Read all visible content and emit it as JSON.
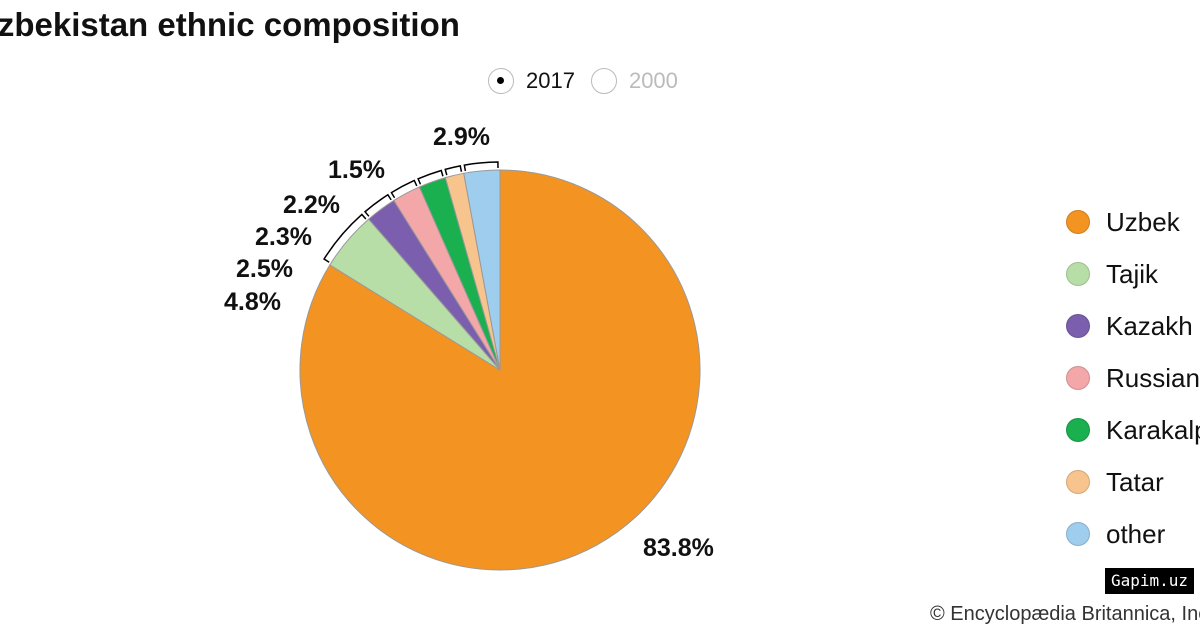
{
  "chart_data": {
    "type": "pie",
    "title": "Uzbekistan ethnic composition",
    "year_options": [
      {
        "label": "2017",
        "selected": true
      },
      {
        "label": "2000",
        "selected": false
      }
    ],
    "categories": [
      "Uzbek",
      "Tajik",
      "Kazakh",
      "Russian",
      "Karakalpak",
      "Tatar",
      "other"
    ],
    "values": [
      83.8,
      4.8,
      2.5,
      2.3,
      2.2,
      1.5,
      2.9
    ],
    "labels": [
      "83.8%",
      "4.8%",
      "2.5%",
      "2.3%",
      "2.2%",
      "1.5%",
      "2.9%"
    ],
    "colors": [
      "#f39422",
      "#b8dea8",
      "#7b5fae",
      "#f3a7a8",
      "#1aaf4f",
      "#f8c48e",
      "#9fcdee"
    ],
    "legend_position": "right",
    "start_angle": "12 o'clock, clockwise"
  },
  "credit": "© Encyclopædia Britannica, Inc.",
  "watermark": "Gapim.uz"
}
